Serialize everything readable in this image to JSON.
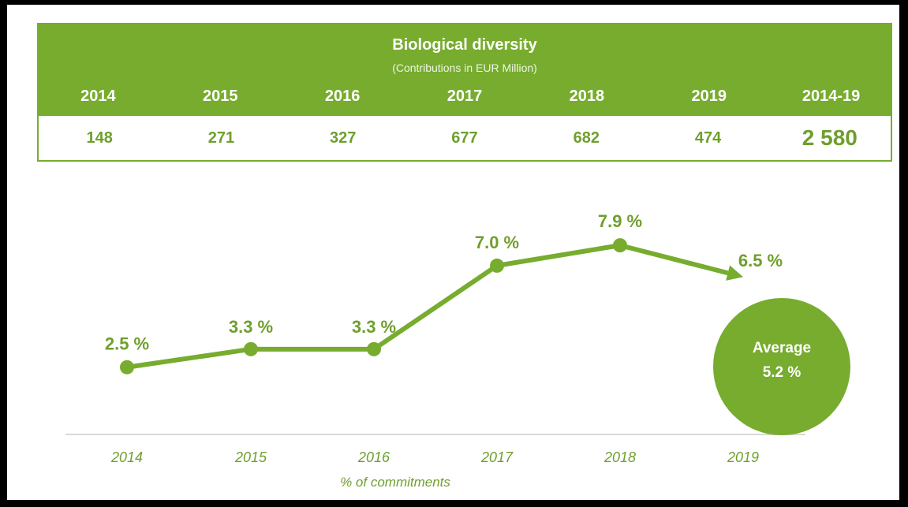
{
  "table": {
    "title": "Biological diversity",
    "subtitle": "(Contributions in EUR Million)",
    "headers": [
      "2014",
      "2015",
      "2016",
      "2017",
      "2018",
      "2019",
      "2014-19"
    ],
    "values": [
      "148",
      "271",
      "327",
      "677",
      "682",
      "474",
      "2 580"
    ]
  },
  "chart_data": {
    "type": "line",
    "categories": [
      "2014",
      "2015",
      "2016",
      "2017",
      "2018",
      "2019"
    ],
    "values": [
      2.5,
      3.3,
      3.3,
      7.0,
      7.9,
      6.5
    ],
    "labels": [
      "2.5 %",
      "3.3 %",
      "3.3 %",
      "7.0 %",
      "7.9 %",
      "6.5 %"
    ],
    "xlabel": "% of commitments",
    "average_label": "Average",
    "average_value": "5.2 %",
    "color": "#77ac2f",
    "label_color": "#6f9f2c",
    "tick_color": "#6f9f2c"
  }
}
